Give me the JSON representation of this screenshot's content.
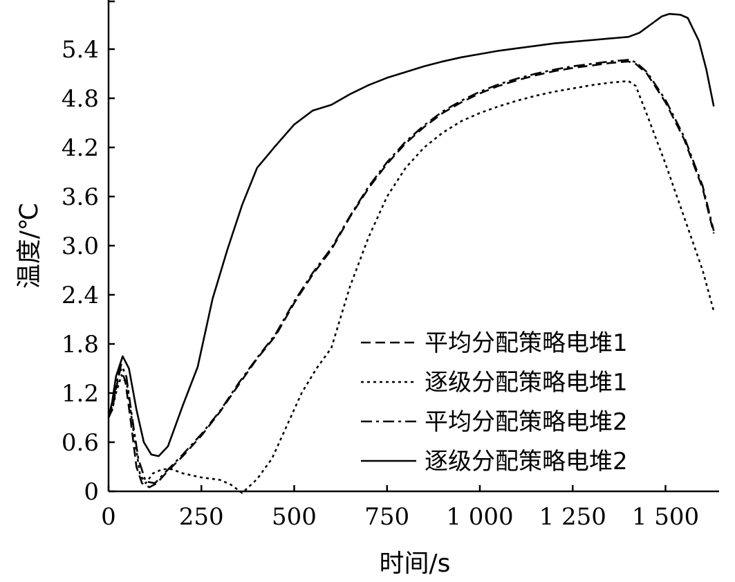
{
  "chart_data": {
    "type": "line",
    "title": "",
    "xlabel": "时间/s",
    "ylabel": "温度/℃",
    "xlim": [
      0,
      1640
    ],
    "ylim": [
      0,
      5.9
    ],
    "xticks": [
      {
        "value": 0,
        "label": "0"
      },
      {
        "value": 250,
        "label": "250"
      },
      {
        "value": 500,
        "label": "500"
      },
      {
        "value": 750,
        "label": "750"
      },
      {
        "value": 1000,
        "label": "1 000"
      },
      {
        "value": 1250,
        "label": "1 250"
      },
      {
        "value": 1500,
        "label": "1 500"
      }
    ],
    "yticks": [
      {
        "value": 0,
        "label": "0"
      },
      {
        "value": 0.6,
        "label": "0.6"
      },
      {
        "value": 1.2,
        "label": "1.2"
      },
      {
        "value": 1.8,
        "label": "1.8"
      },
      {
        "value": 2.4,
        "label": "2.4"
      },
      {
        "value": 3.0,
        "label": "3.0"
      },
      {
        "value": 3.6,
        "label": "3.6"
      },
      {
        "value": 4.2,
        "label": "4.2"
      },
      {
        "value": 4.8,
        "label": "4.8"
      },
      {
        "value": 5.4,
        "label": "5.4"
      }
    ],
    "grid": false,
    "legend_position": "right",
    "series": [
      {
        "name": "平均分配策略电堆1",
        "dash": "dashed",
        "x": [
          0,
          10,
          20,
          32,
          45,
          60,
          75,
          90,
          110,
          130,
          160,
          200,
          250,
          300,
          350,
          400,
          450,
          500,
          550,
          600,
          650,
          700,
          750,
          800,
          850,
          900,
          950,
          1000,
          1050,
          1100,
          1150,
          1200,
          1250,
          1300,
          1350,
          1400,
          1420,
          1450,
          1500,
          1550,
          1600,
          1630
        ],
        "y": [
          0.9,
          1.0,
          1.25,
          1.5,
          1.35,
          0.85,
          0.3,
          0.1,
          0.05,
          0.1,
          0.25,
          0.43,
          0.68,
          0.97,
          1.3,
          1.62,
          1.9,
          2.3,
          2.65,
          2.95,
          3.35,
          3.7,
          4.0,
          4.25,
          4.45,
          4.62,
          4.75,
          4.86,
          4.95,
          5.02,
          5.08,
          5.13,
          5.17,
          5.2,
          5.23,
          5.25,
          5.22,
          5.1,
          4.75,
          4.3,
          3.7,
          3.15
        ]
      },
      {
        "name": "逐级分配策略电堆1",
        "dash": "dotted",
        "x": [
          0,
          10,
          20,
          35,
          50,
          65,
          85,
          100,
          120,
          145,
          170,
          200,
          250,
          300,
          330,
          360,
          400,
          440,
          480,
          520,
          560,
          600,
          650,
          700,
          750,
          800,
          850,
          900,
          950,
          1000,
          1050,
          1100,
          1150,
          1200,
          1250,
          1300,
          1350,
          1400,
          1420,
          1450,
          1500,
          1550,
          1600,
          1630
        ],
        "y": [
          0.9,
          1.0,
          1.2,
          1.42,
          1.3,
          0.8,
          0.2,
          0.1,
          0.22,
          0.27,
          0.27,
          0.22,
          0.17,
          0.14,
          0.08,
          -0.02,
          0.15,
          0.4,
          0.8,
          1.2,
          1.5,
          1.75,
          2.5,
          3.1,
          3.6,
          3.95,
          4.2,
          4.38,
          4.52,
          4.62,
          4.7,
          4.77,
          4.83,
          4.88,
          4.92,
          4.96,
          4.99,
          5.01,
          4.95,
          4.6,
          4.0,
          3.35,
          2.7,
          2.2
        ]
      },
      {
        "name": "平均分配策略电堆2",
        "dash": "dashdot",
        "x": [
          0,
          10,
          20,
          34,
          48,
          62,
          80,
          100,
          125,
          150,
          200,
          250,
          300,
          350,
          400,
          450,
          500,
          550,
          600,
          650,
          700,
          750,
          800,
          850,
          900,
          950,
          1000,
          1050,
          1100,
          1150,
          1200,
          1250,
          1300,
          1350,
          1400,
          1420,
          1450,
          1500,
          1550,
          1600,
          1630
        ],
        "y": [
          0.9,
          1.05,
          1.3,
          1.55,
          1.4,
          0.95,
          0.4,
          0.12,
          0.1,
          0.22,
          0.45,
          0.7,
          0.98,
          1.32,
          1.63,
          1.92,
          2.32,
          2.67,
          2.97,
          3.36,
          3.72,
          4.02,
          4.27,
          4.47,
          4.64,
          4.77,
          4.88,
          4.97,
          5.04,
          5.1,
          5.15,
          5.19,
          5.22,
          5.25,
          5.27,
          5.24,
          5.12,
          4.78,
          4.33,
          3.73,
          3.18
        ]
      },
      {
        "name": "逐级分配策略电堆2",
        "dash": "solid",
        "x": [
          0,
          10,
          20,
          38,
          55,
          75,
          95,
          115,
          135,
          160,
          200,
          240,
          280,
          320,
          360,
          400,
          450,
          500,
          550,
          600,
          650,
          700,
          750,
          800,
          850,
          900,
          950,
          1000,
          1050,
          1100,
          1150,
          1200,
          1250,
          1300,
          1350,
          1400,
          1430,
          1460,
          1490,
          1510,
          1540,
          1560,
          1590,
          1610,
          1630
        ],
        "y": [
          0.9,
          1.1,
          1.4,
          1.65,
          1.5,
          1.0,
          0.6,
          0.45,
          0.43,
          0.55,
          1.05,
          1.52,
          2.35,
          2.95,
          3.5,
          3.95,
          4.22,
          4.48,
          4.65,
          4.72,
          4.85,
          4.96,
          5.05,
          5.12,
          5.19,
          5.25,
          5.3,
          5.34,
          5.38,
          5.41,
          5.44,
          5.47,
          5.49,
          5.51,
          5.53,
          5.55,
          5.6,
          5.7,
          5.8,
          5.83,
          5.82,
          5.78,
          5.5,
          5.15,
          4.7
        ]
      }
    ]
  }
}
